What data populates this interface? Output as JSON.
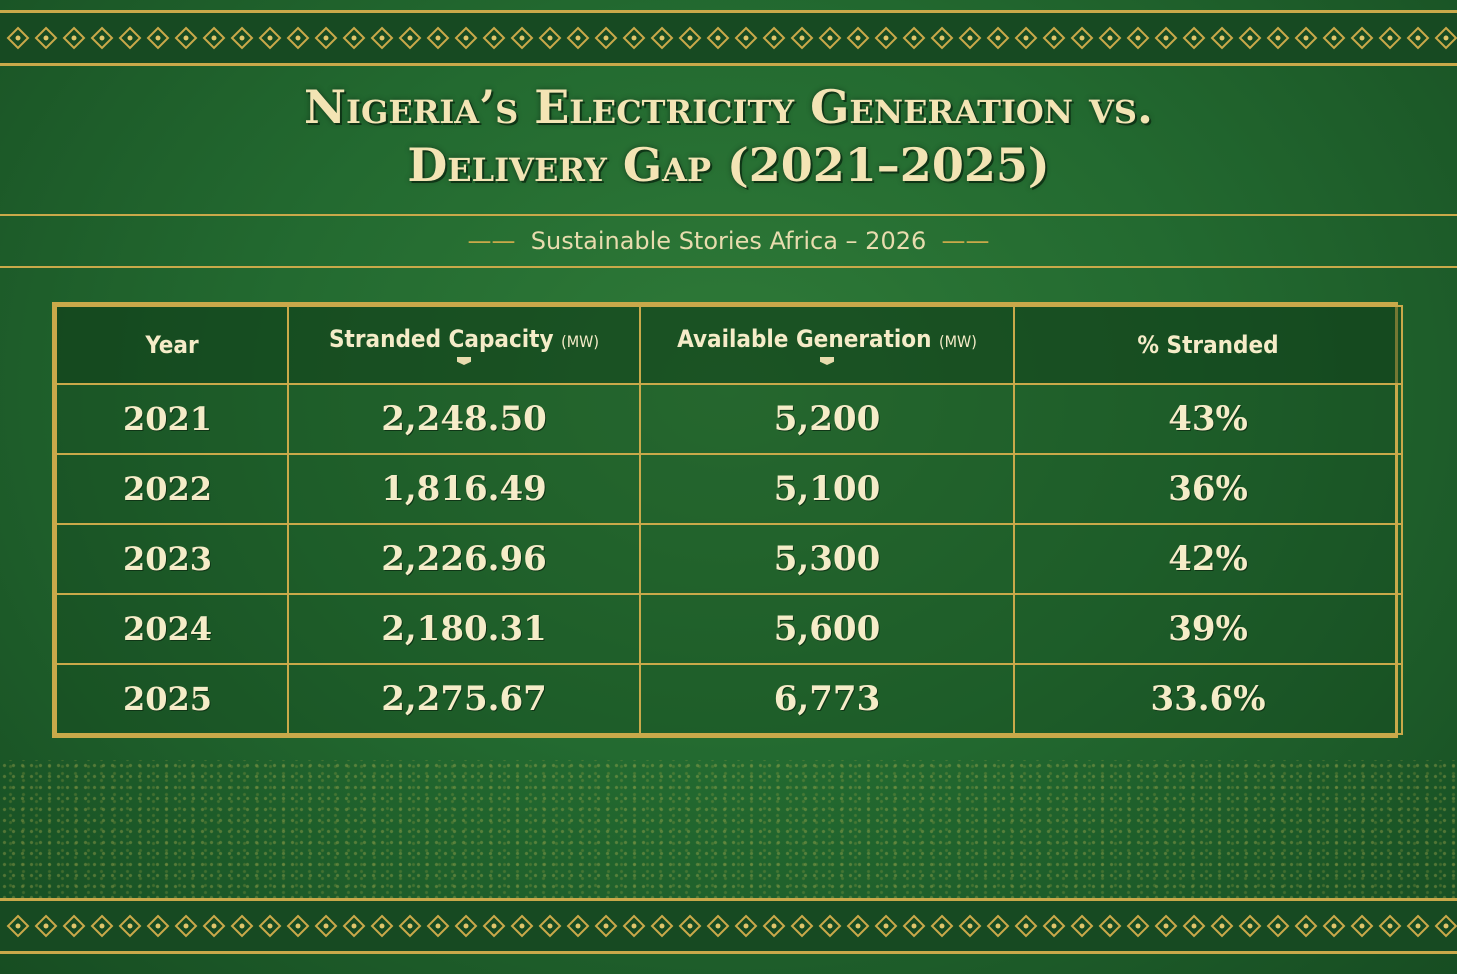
{
  "title_line1": "Nigeria’s Electricity Generation vs.",
  "title_line2": "Delivery Gap (2021–2025)",
  "subtitle": "Sustainable Stories Africa – 2026",
  "colors": {
    "background": "#236a30",
    "gold": "#c9a94a",
    "text": "#f5ecc8"
  },
  "chart_data": {
    "type": "table",
    "title": "Nigeria’s Electricity Generation vs. Delivery Gap (2021–2025)",
    "columns": [
      {
        "label": "Year",
        "unit": ""
      },
      {
        "label": "Stranded Capacity",
        "unit": "(MW)"
      },
      {
        "label": "Available Generation",
        "unit": "(MW)"
      },
      {
        "label": "% Stranded",
        "unit": ""
      }
    ],
    "rows": [
      {
        "year": "2021",
        "stranded": "2,248.50",
        "available": "5,200",
        "pct": "43%"
      },
      {
        "year": "2022",
        "stranded": "1,816.49",
        "available": "5,100",
        "pct": "36%"
      },
      {
        "year": "2023",
        "stranded": "2,226.96",
        "available": "5,300",
        "pct": "42%"
      },
      {
        "year": "2024",
        "stranded": "2,180.31",
        "available": "5,600",
        "pct": "39%"
      },
      {
        "year": "2025",
        "stranded": "2,275.67",
        "available": "6,773",
        "pct": "33.6%"
      }
    ]
  }
}
